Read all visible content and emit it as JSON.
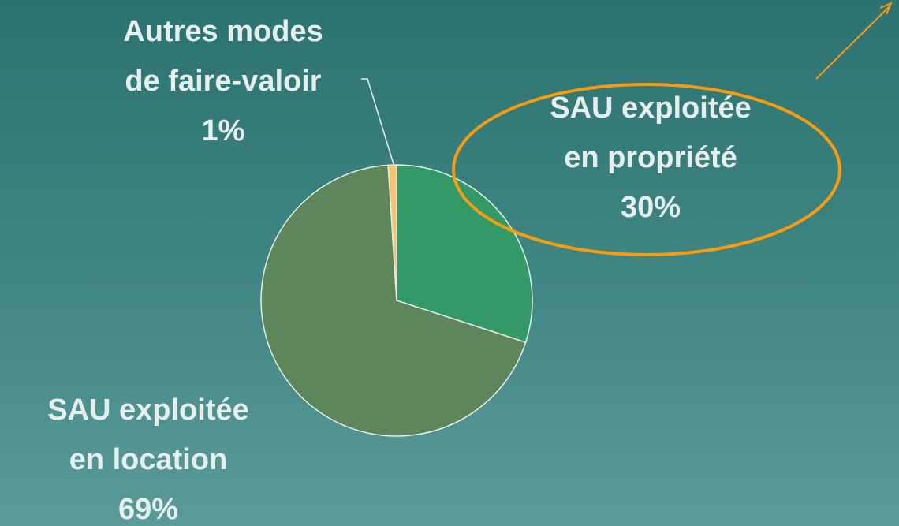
{
  "chart_data": {
    "type": "pie",
    "categories": [
      "SAU exploitée en propriété",
      "SAU exploitée en location",
      "Autres modes de faire-valoir"
    ],
    "values": [
      30,
      69,
      1
    ],
    "value_labels": [
      "30%",
      "69%",
      "1%"
    ],
    "colors": [
      "#339966",
      "#5f855a",
      "#f2c46e"
    ]
  }
}
